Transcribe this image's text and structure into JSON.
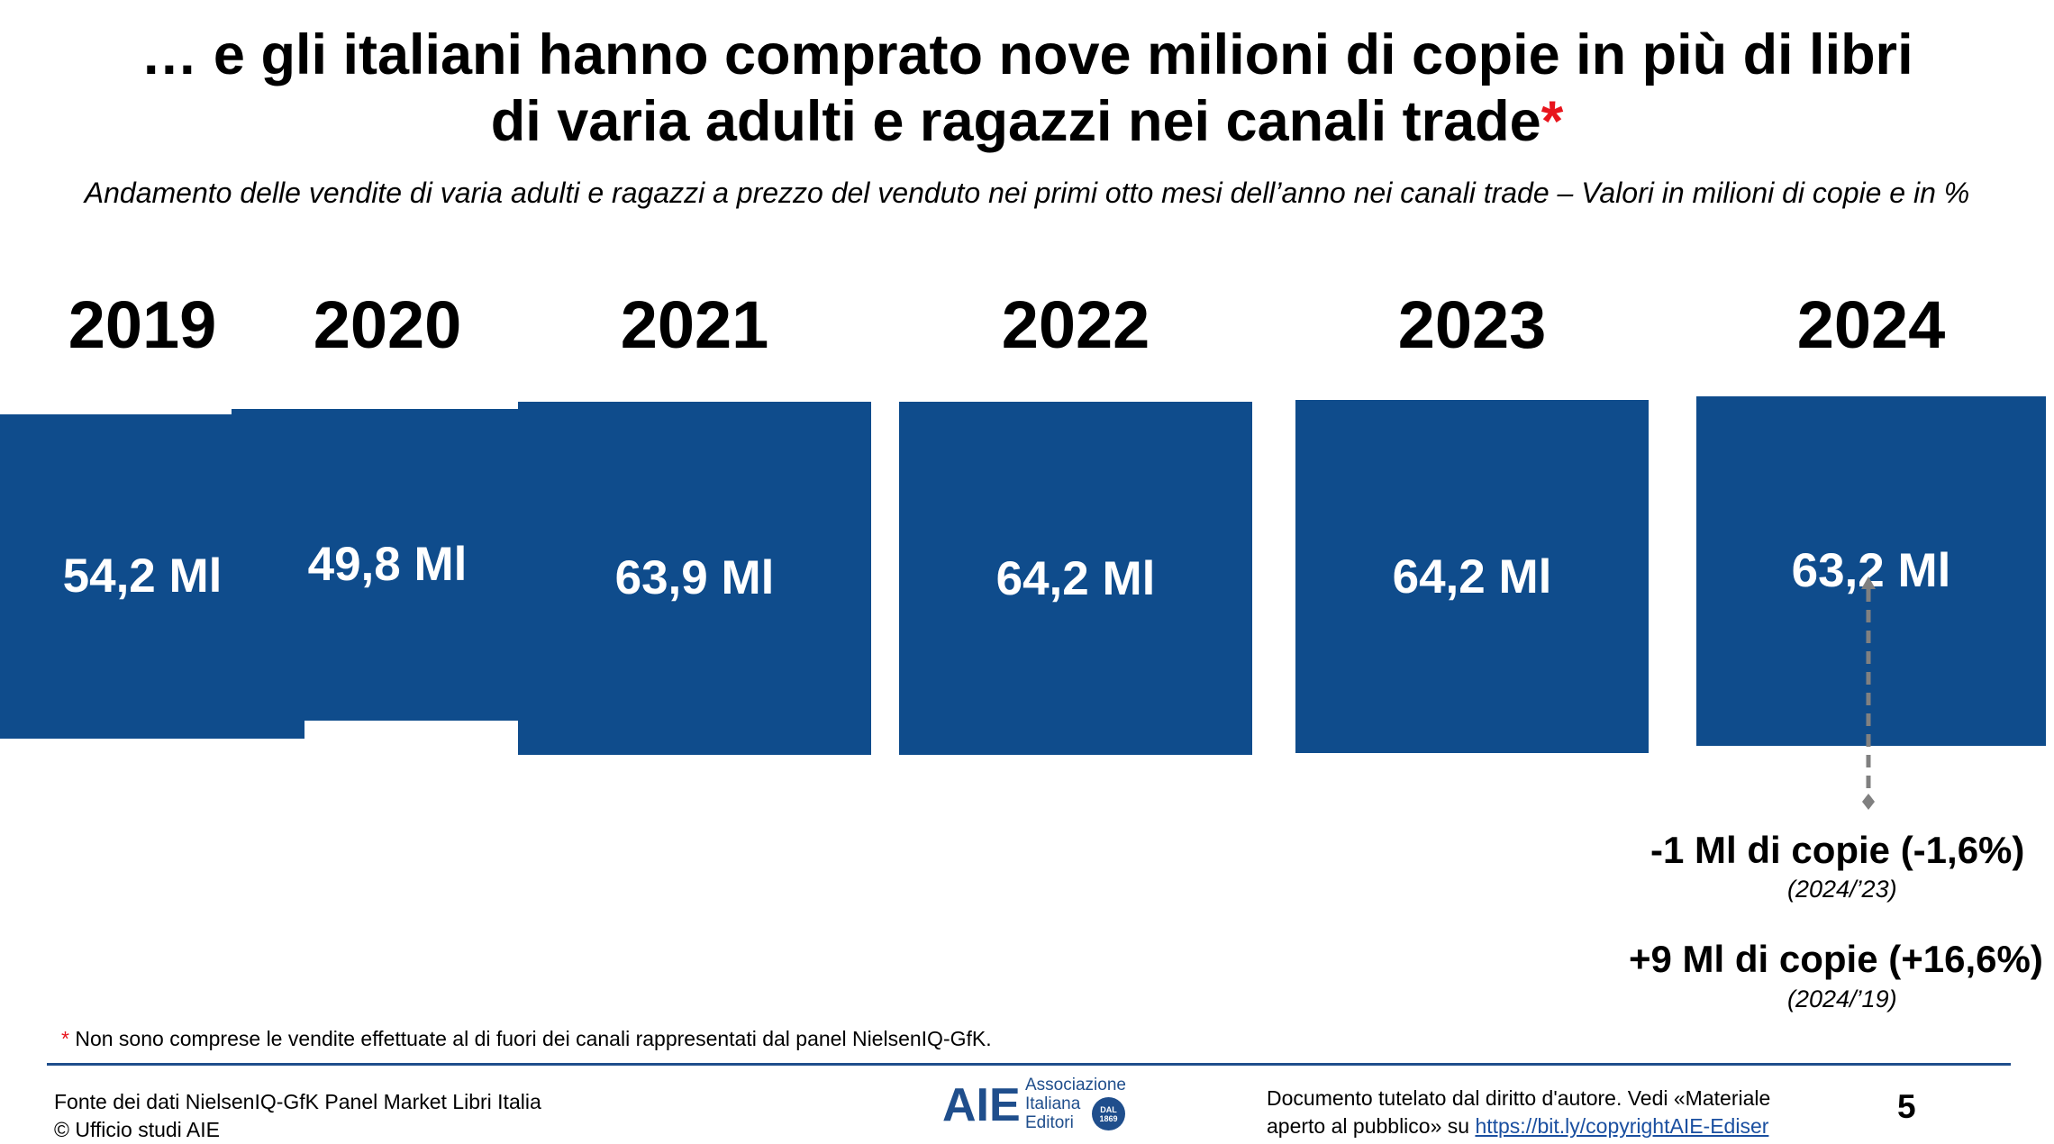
{
  "header": {
    "title_line1": "… e gli italiani hanno comprato nove milioni di copie in più di libri",
    "title_line2": "di varia adulti e ragazzi nei canali trade",
    "title_star": "*",
    "subtitle": "Andamento delle vendite di varia adulti e ragazzi a prezzo del venduto nei primi otto mesi dell’anno nei canali trade – Valori in milioni di copie e in %"
  },
  "chart_data": {
    "type": "bar",
    "categories": [
      "2019",
      "2020",
      "2021",
      "2022",
      "2023",
      "2024"
    ],
    "values": [
      54.2,
      49.8,
      63.9,
      64.2,
      64.2,
      63.2
    ],
    "labels": [
      "54,2 Ml",
      "49,8 Ml",
      "63,9 Ml",
      "64,2 Ml",
      "64,2 Ml",
      "63,2 Ml"
    ],
    "bar_color": "#0f4c8c"
  },
  "annotations": {
    "delta1": "-1 Ml di copie (-1,6%)",
    "delta1_sub": "(2024/’23)",
    "delta2": "+9 Ml di copie (+16,6%)",
    "delta2_sub": "(2024/’19)"
  },
  "footnote": {
    "star": "*",
    "text": " Non sono comprese le vendite effettuate al di fuori dei canali rappresentati dal panel NielsenIQ-GfK."
  },
  "footer": {
    "source_line1": "Fonte dei dati NielsenIQ-GfK Panel Market Libri Italia",
    "source_line2": "© Ufficio studi AIE",
    "logo_mark": "AIE",
    "logo_line1": "Associazione",
    "logo_line2": "Italiana",
    "logo_line3": "Editori",
    "logo_badge": "DAL 1869",
    "copyright_line1": "Documento tutelato dal diritto d'autore. Vedi «Materiale",
    "copyright_line2_prefix": "aperto al pubblico» su ",
    "copyright_link": "https://bit.ly/copyrightAIE-Ediser",
    "page_number": "5"
  }
}
